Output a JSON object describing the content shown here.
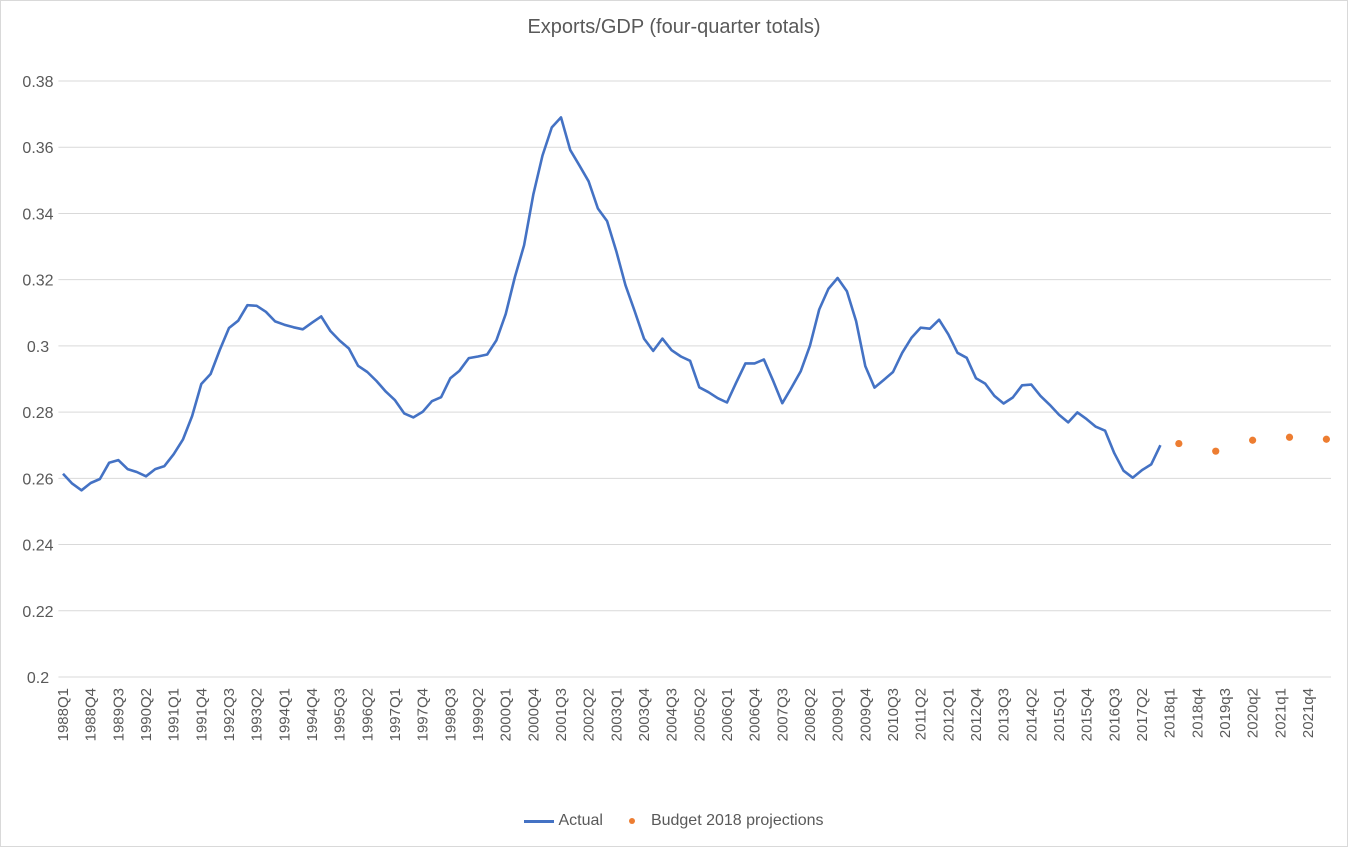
{
  "chart_data": {
    "type": "line",
    "title": "Exports/GDP (four-quarter totals)",
    "xlabel": "",
    "ylabel": "",
    "ylim": [
      0.2,
      0.38
    ],
    "yticks": [
      "0.2",
      "0.22",
      "0.24",
      "0.26",
      "0.28",
      "0.3",
      "0.32",
      "0.34",
      "0.36",
      "0.38"
    ],
    "grid": true,
    "legend_position": "bottom",
    "categories": [
      "1988Q1",
      "1988Q2",
      "1988Q3",
      "1988Q4",
      "1989Q1",
      "1989Q2",
      "1989Q3",
      "1989Q4",
      "1990Q1",
      "1990Q2",
      "1990Q3",
      "1990Q4",
      "1991Q1",
      "1991Q2",
      "1991Q3",
      "1991Q4",
      "1992Q1",
      "1992Q2",
      "1992Q3",
      "1992Q4",
      "1993Q1",
      "1993Q2",
      "1993Q3",
      "1993Q4",
      "1994Q1",
      "1994Q2",
      "1994Q3",
      "1994Q4",
      "1995Q1",
      "1995Q2",
      "1995Q3",
      "1995Q4",
      "1996Q1",
      "1996Q2",
      "1996Q3",
      "1996Q4",
      "1997Q1",
      "1997Q2",
      "1997Q3",
      "1997Q4",
      "1998Q1",
      "1998Q2",
      "1998Q3",
      "1998Q4",
      "1999Q1",
      "1999Q2",
      "1999Q3",
      "1999Q4",
      "2000Q1",
      "2000Q2",
      "2000Q3",
      "2000Q4",
      "2001Q1",
      "2001Q2",
      "2001Q3",
      "2001Q4",
      "2002Q1",
      "2002Q2",
      "2002Q3",
      "2002Q4",
      "2003Q1",
      "2003Q2",
      "2003Q3",
      "2003Q4",
      "2004Q1",
      "2004Q2",
      "2004Q3",
      "2004Q4",
      "2005Q1",
      "2005Q2",
      "2005Q3",
      "2005Q4",
      "2006Q1",
      "2006Q2",
      "2006Q3",
      "2006Q4",
      "2007Q1",
      "2007Q2",
      "2007Q3",
      "2007Q4",
      "2008Q1",
      "2008Q2",
      "2008Q3",
      "2008Q4",
      "2009Q1",
      "2009Q2",
      "2009Q3",
      "2009Q4",
      "2010Q1",
      "2010Q2",
      "2010Q3",
      "2010Q4",
      "2011Q1",
      "2011Q2",
      "2011Q3",
      "2011Q4",
      "2012Q1",
      "2012Q2",
      "2012Q3",
      "2012Q4",
      "2013Q1",
      "2013Q2",
      "2013Q3",
      "2013Q4",
      "2014Q1",
      "2014Q2",
      "2014Q3",
      "2014Q4",
      "2015Q1",
      "2015Q2",
      "2015Q3",
      "2015Q4",
      "2016Q1",
      "2016Q2",
      "2016Q3",
      "2016Q4",
      "2017Q1",
      "2017Q2",
      "2017Q3",
      "2017Q4",
      "2018q1",
      "2018q2",
      "2018q3",
      "2018q4",
      "2019q1",
      "2019q2",
      "2019q3",
      "2019q4",
      "2020q1",
      "2020q2",
      "2020q3",
      "2020q4",
      "2021q1",
      "2021q2",
      "2021q3",
      "2021q4",
      "2022q1",
      "2022q2"
    ],
    "series": [
      {
        "name": "Actual",
        "color": "#4472c4",
        "style": "line",
        "values": [
          0.2614,
          0.2584,
          0.2564,
          0.2586,
          0.2598,
          0.2647,
          0.2655,
          0.2628,
          0.2619,
          0.2606,
          0.2628,
          0.2637,
          0.2673,
          0.2717,
          0.2788,
          0.2885,
          0.2915,
          0.2988,
          0.3054,
          0.3076,
          0.3123,
          0.3121,
          0.3103,
          0.3074,
          0.3064,
          0.3056,
          0.305,
          0.307,
          0.3089,
          0.3045,
          0.3016,
          0.2992,
          0.294,
          0.2921,
          0.2894,
          0.2862,
          0.2836,
          0.2796,
          0.2784,
          0.2801,
          0.2833,
          0.2845,
          0.2902,
          0.2925,
          0.2963,
          0.2968,
          0.2974,
          0.3017,
          0.3096,
          0.3208,
          0.3304,
          0.3457,
          0.3575,
          0.366,
          0.369,
          0.3592,
          0.3545,
          0.3497,
          0.3415,
          0.3377,
          0.3286,
          0.3183,
          0.3104,
          0.3022,
          0.2985,
          0.3022,
          0.2987,
          0.2968,
          0.2955,
          0.2875,
          0.286,
          0.2842,
          0.2829,
          0.2889,
          0.2947,
          0.2947,
          0.2959,
          0.2895,
          0.2827,
          0.2874,
          0.2924,
          0.3001,
          0.311,
          0.3172,
          0.3205,
          0.3165,
          0.3075,
          0.2939,
          0.2874,
          0.2897,
          0.2921,
          0.2979,
          0.3024,
          0.3055,
          0.3052,
          0.3079,
          0.3035,
          0.2979,
          0.2964,
          0.2902,
          0.2886,
          0.2849,
          0.2826,
          0.2844,
          0.2881,
          0.2883,
          0.2849,
          0.2822,
          0.2792,
          0.2769,
          0.2799,
          0.2779,
          0.2756,
          0.2744,
          0.2676,
          0.2623,
          0.2602,
          0.2625,
          0.2642,
          0.27,
          null,
          null,
          null,
          null,
          null,
          null,
          null,
          null,
          null,
          null,
          null,
          null,
          null,
          null,
          null,
          null,
          null,
          null
        ]
      },
      {
        "name": "Budget 2018 projections",
        "color": "#ed7d31",
        "style": "markers",
        "values": [
          null,
          null,
          null,
          null,
          null,
          null,
          null,
          null,
          null,
          null,
          null,
          null,
          null,
          null,
          null,
          null,
          null,
          null,
          null,
          null,
          null,
          null,
          null,
          null,
          null,
          null,
          null,
          null,
          null,
          null,
          null,
          null,
          null,
          null,
          null,
          null,
          null,
          null,
          null,
          null,
          null,
          null,
          null,
          null,
          null,
          null,
          null,
          null,
          null,
          null,
          null,
          null,
          null,
          null,
          null,
          null,
          null,
          null,
          null,
          null,
          null,
          null,
          null,
          null,
          null,
          null,
          null,
          null,
          null,
          null,
          null,
          null,
          null,
          null,
          null,
          null,
          null,
          null,
          null,
          null,
          null,
          null,
          null,
          null,
          null,
          null,
          null,
          null,
          null,
          null,
          null,
          null,
          null,
          null,
          null,
          null,
          null,
          null,
          null,
          null,
          null,
          null,
          null,
          null,
          null,
          null,
          null,
          null,
          null,
          null,
          null,
          null,
          null,
          null,
          null,
          null,
          null,
          null,
          null,
          null,
          null,
          0.2705,
          null,
          null,
          null,
          0.2682,
          null,
          null,
          null,
          0.2715,
          null,
          null,
          null,
          0.2724,
          null,
          null,
          null,
          0.2718
        ]
      }
    ],
    "x_label_every": 3
  }
}
